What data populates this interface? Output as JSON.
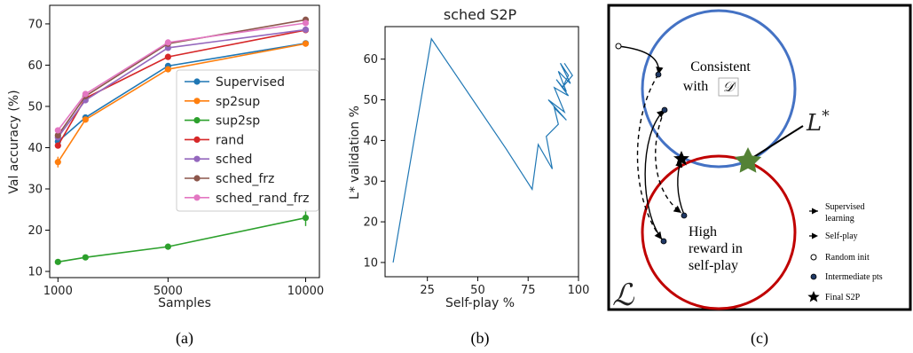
{
  "captions": [
    "(a)",
    "(b)",
    "(c)"
  ],
  "chart_data": [
    {
      "type": "line",
      "title": "",
      "xlabel": "Samples",
      "ylabel": "Val accuracy (%)",
      "x": [
        1000,
        2000,
        5000,
        10000
      ],
      "xlim": [
        700,
        10500
      ],
      "ylim": [
        8.5,
        74.5
      ],
      "xticks": [
        1000,
        5000,
        10000
      ],
      "yticks": [
        10,
        20,
        30,
        40,
        50,
        60,
        70
      ],
      "grid": false,
      "legend_placement": "lower-right",
      "series": [
        {
          "name": "Supervised",
          "color": "#1f77b4",
          "values": [
            41.5,
            47.3,
            59.8,
            65.3
          ],
          "err": [
            0.6,
            0.4,
            0.5,
            0.4
          ]
        },
        {
          "name": "sp2sup",
          "color": "#ff7f0e",
          "values": [
            36.5,
            46.8,
            59.0,
            65.2
          ],
          "err": [
            1.3,
            0.6,
            0.6,
            0.5
          ]
        },
        {
          "name": "sup2sp",
          "color": "#2ca02c",
          "values": [
            12.3,
            13.4,
            16.0,
            23.0
          ],
          "err": [
            0.5,
            0.4,
            0.4,
            2.0
          ]
        },
        {
          "name": "rand",
          "color": "#d62728",
          "values": [
            40.5,
            52.0,
            62.0,
            68.5
          ],
          "err": [
            0.5,
            0.5,
            0.5,
            0.5
          ]
        },
        {
          "name": "sched",
          "color": "#9467bd",
          "values": [
            42.5,
            51.5,
            64.2,
            68.6
          ],
          "err": [
            0.5,
            0.5,
            0.5,
            0.5
          ]
        },
        {
          "name": "sched_frz",
          "color": "#8c564b",
          "values": [
            43.0,
            52.5,
            65.2,
            71.0
          ],
          "err": [
            0.5,
            0.5,
            0.5,
            0.5
          ]
        },
        {
          "name": "sched_rand_frz",
          "color": "#e377c2",
          "values": [
            44.2,
            53.0,
            65.5,
            70.2
          ],
          "err": [
            0.5,
            0.5,
            0.5,
            0.5
          ]
        }
      ]
    },
    {
      "type": "line",
      "title": "sched S2P",
      "xlabel": "Self-play %",
      "ylabel": "L* validation %",
      "xlim": [
        4,
        100
      ],
      "ylim": [
        6.5,
        68
      ],
      "xticks": [
        25,
        50,
        75,
        100
      ],
      "yticks": [
        10,
        20,
        30,
        40,
        50,
        60
      ],
      "grid": false,
      "series": [
        {
          "color": "#1f77b4",
          "x": [
            8,
            27,
            64,
            77,
            80,
            87,
            84,
            90,
            88,
            94,
            85,
            93,
            88,
            95,
            89,
            94,
            90,
            96,
            91,
            95,
            92,
            97,
            93
          ],
          "y": [
            10,
            65,
            38,
            28,
            39,
            33,
            41,
            44,
            48,
            45,
            50,
            47,
            53,
            51,
            55,
            52,
            57,
            54,
            59,
            56,
            53,
            56,
            59
          ]
        }
      ]
    }
  ],
  "diagram": {
    "top_region_label_1": "Consistent",
    "top_region_label_2": "with",
    "top_region_symbol": "𝒟",
    "bottom_region_label_1": "High",
    "bottom_region_label_2": "reward in",
    "bottom_region_label_3": "self-play",
    "target_symbol": "L",
    "target_superscript": "*",
    "space_symbol": "ℒ",
    "legend": {
      "supervised_1": "Supervised",
      "supervised_2": "learning",
      "selfplay": "Self-play",
      "random_init": "Random init",
      "intermediate": "Intermediate pts",
      "final": "Final S2P"
    },
    "colors": {
      "top_circle": "#4472c4",
      "bottom_circle": "#c00000",
      "star": "#548235"
    }
  }
}
